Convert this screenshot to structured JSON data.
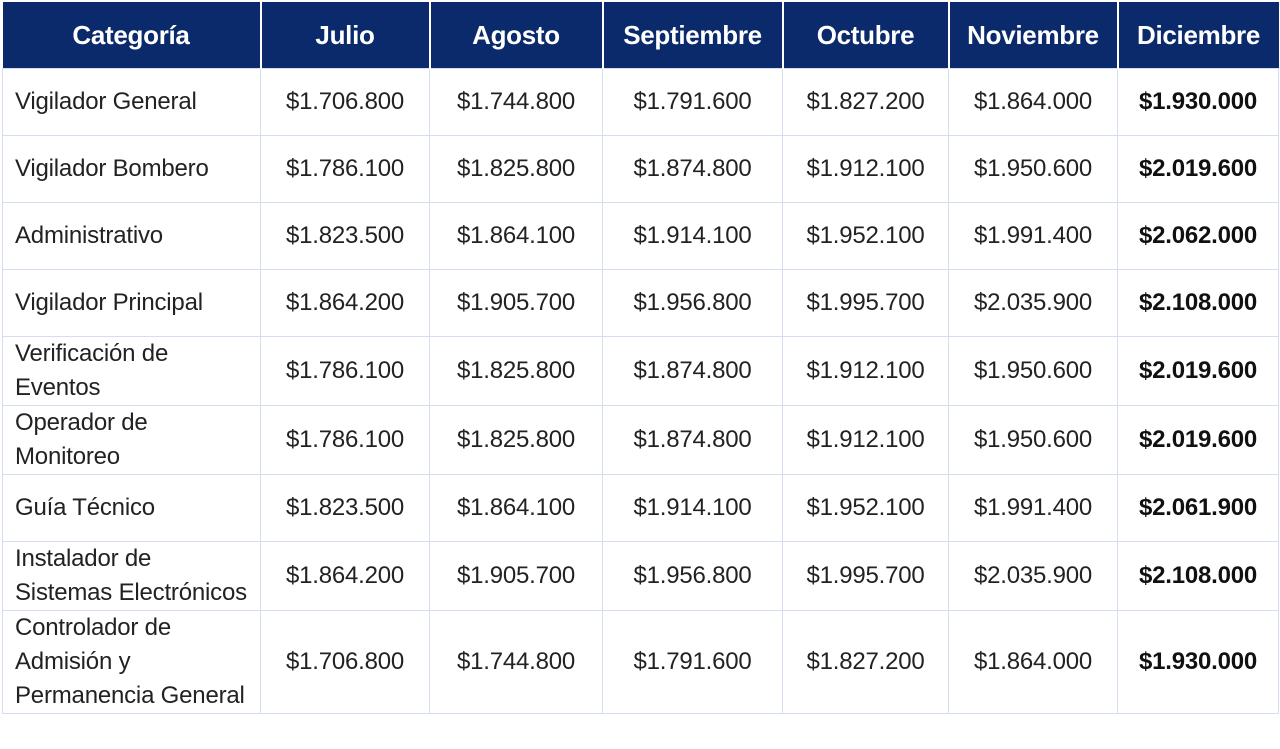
{
  "headers": [
    "Categoría",
    "Julio",
    "Agosto",
    "Septiembre",
    "Octubre",
    "Noviembre",
    "Diciembre"
  ],
  "rows": [
    {
      "categoria": "Vigilador General",
      "julio": "$1.706.800",
      "agosto": "$1.744.800",
      "septiembre": "$1.791.600",
      "octubre": "$1.827.200",
      "noviembre": "$1.864.000",
      "diciembre": "$1.930.000"
    },
    {
      "categoria": "Vigilador Bombero",
      "julio": "$1.786.100",
      "agosto": "$1.825.800",
      "septiembre": "$1.874.800",
      "octubre": "$1.912.100",
      "noviembre": "$1.950.600",
      "diciembre": "$2.019.600"
    },
    {
      "categoria": "Administrativo",
      "julio": "$1.823.500",
      "agosto": "$1.864.100",
      "septiembre": "$1.914.100",
      "octubre": "$1.952.100",
      "noviembre": "$1.991.400",
      "diciembre": "$2.062.000"
    },
    {
      "categoria": "Vigilador Principal",
      "julio": "$1.864.200",
      "agosto": "$1.905.700",
      "septiembre": "$1.956.800",
      "octubre": "$1.995.700",
      "noviembre": "$2.035.900",
      "diciembre": "$2.108.000"
    },
    {
      "categoria": "Verificación de Eventos",
      "julio": "$1.786.100",
      "agosto": "$1.825.800",
      "septiembre": "$1.874.800",
      "octubre": "$1.912.100",
      "noviembre": "$1.950.600",
      "diciembre": "$2.019.600"
    },
    {
      "categoria": "Operador de Monitoreo",
      "julio": "$1.786.100",
      "agosto": "$1.825.800",
      "septiembre": "$1.874.800",
      "octubre": "$1.912.100",
      "noviembre": "$1.950.600",
      "diciembre": "$2.019.600"
    },
    {
      "categoria": "Guía Técnico",
      "julio": "$1.823.500",
      "agosto": "$1.864.100",
      "septiembre": "$1.914.100",
      "octubre": "$1.952.100",
      "noviembre": "$1.991.400",
      "diciembre": "$2.061.900"
    },
    {
      "categoria": "Instalador de Sistemas Electrónicos",
      "julio": "$1.864.200",
      "agosto": "$1.905.700",
      "septiembre": "$1.956.800",
      "octubre": "$1.995.700",
      "noviembre": "$2.035.900",
      "diciembre": "$2.108.000"
    },
    {
      "categoria": "Controlador de Admisión y Permanencia General",
      "julio": "$1.706.800",
      "agosto": "$1.744.800",
      "septiembre": "$1.791.600",
      "octubre": "$1.827.200",
      "noviembre": "$1.864.000",
      "diciembre": "$1.930.000"
    }
  ],
  "colors": {
    "header_bg": "#0b2a6b",
    "header_text": "#ffffff",
    "grid": "#d4deef"
  }
}
